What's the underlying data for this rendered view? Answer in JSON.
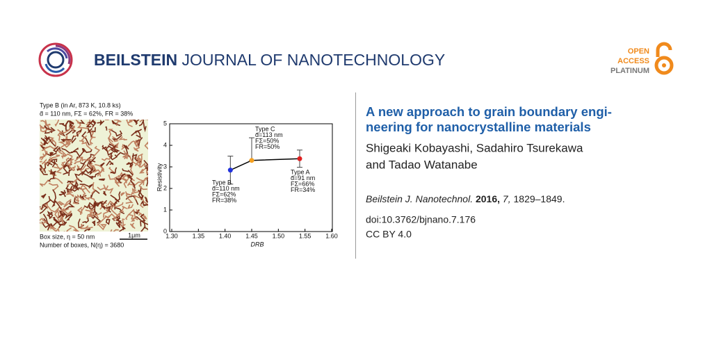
{
  "header": {
    "journal_bold": "BEILSTEIN",
    "journal_rest": "JOURNAL OF NANOTECHNOLOGY",
    "badge": [
      "OPEN",
      "ACCESS",
      "PLATINUM"
    ]
  },
  "figure": {
    "caption_lines": [
      "Type B (in Ar, 873 K, 10.8 ks)",
      "d̄ = 110 nm,  FΣ = 62%,  FR = 38%"
    ],
    "box_size": "Box size, η = 50 nm",
    "scale_bar": "1μm",
    "boxes": "Number of boxes, N(η) = 3680"
  },
  "chart_data": {
    "type": "scatter",
    "xlabel": "DRB",
    "ylabel": "Resistivity",
    "x": [
      1.41,
      1.45,
      1.54
    ],
    "series": [
      {
        "colors": [
          "#2233dd",
          "#f5a020",
          "#e02020"
        ],
        "line_color": "#000000",
        "values": [
          2.85,
          3.3,
          3.38
        ],
        "error_low": [
          0.65,
          0,
          0.4
        ],
        "error_high": [
          0.65,
          1.05,
          0.4
        ]
      }
    ],
    "xlim": [
      1.3,
      1.6
    ],
    "xticks": [
      {
        "value": 1.3,
        "label": "1.30"
      },
      {
        "value": 1.35,
        "label": "1.35"
      },
      {
        "value": 1.4,
        "label": "1.40"
      },
      {
        "value": 1.45,
        "label": "1.45"
      },
      {
        "value": 1.5,
        "label": "1.50"
      },
      {
        "value": 1.55,
        "label": "1.55"
      },
      {
        "value": 1.6,
        "label": "1.60"
      }
    ],
    "ylim": [
      0,
      5
    ],
    "yticks": [
      0,
      1,
      2,
      3,
      4,
      5
    ],
    "annotations": [
      [
        "Type B",
        "d̄=110 nm",
        "FΣ=62%",
        "FR=38%"
      ],
      [
        "Type C",
        "d̄=113 nm",
        "FΣ=50%",
        "FR=50%"
      ],
      [
        "Type A",
        "d̄=91 nm",
        "FΣ=66%",
        "FR=34%"
      ]
    ]
  },
  "article": {
    "title_lines": [
      "A new approach to grain boundary engi-",
      "neering for nanocrystalline materials"
    ],
    "author_lines": [
      "Shigeaki Kobayashi, Sadahiro Tsurekawa",
      "and Tadao Watanabe"
    ],
    "citation": {
      "journal": "Beilstein J. Nanotechnol.",
      "year": "2016,",
      "volume": "7,",
      "pages": "1829–1849."
    },
    "doi": "doi:10.3762/bjnano.7.176",
    "license": "CC BY 4.0"
  }
}
